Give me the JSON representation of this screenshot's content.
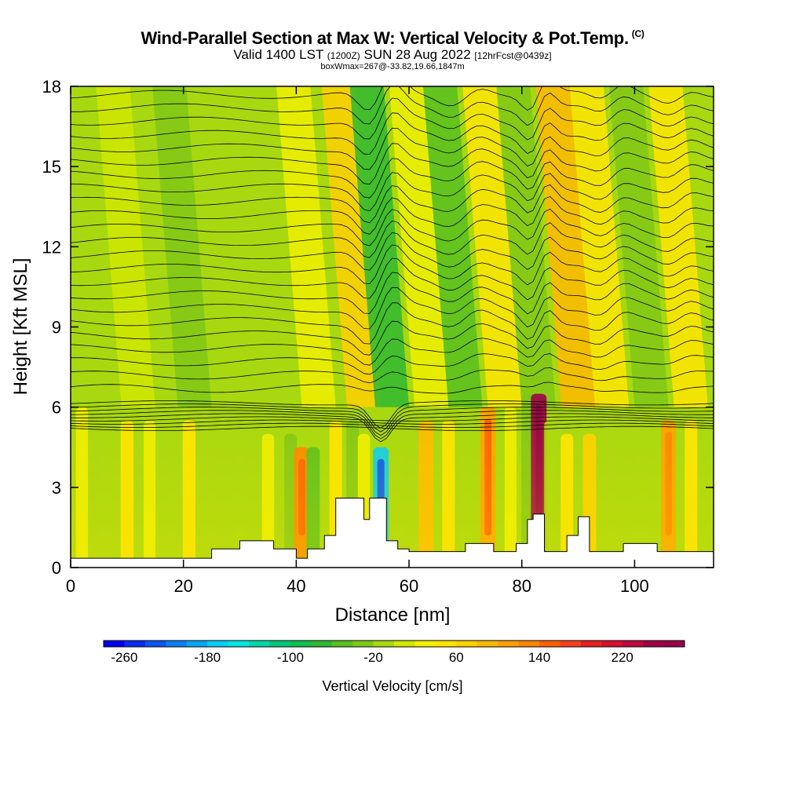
{
  "title": "Wind-Parallel Section at Max W: Vertical Velocity & Pot.Temp.",
  "title_mark": "(C)",
  "valid_line_a": "Valid 1400 LST",
  "valid_line_b": "(1200Z)",
  "valid_line_c": "SUN 28 Aug 2022",
  "valid_line_d": "[12hrFcst@0439z]",
  "box_line": "boxWmax=267@-33.82,19.66,1847m",
  "colorbar_title": "Vertical Velocity [cm/s]",
  "chart_data": {
    "type": "heatmap",
    "title": "Wind-Parallel Section at Max W: Vertical Velocity & Pot.Temp.",
    "xlabel": "Distance [nm]",
    "ylabel": "Height [Kft MSL]",
    "xlim": [
      0,
      114
    ],
    "ylim": [
      0,
      18
    ],
    "xticks": [
      "0",
      "20",
      "40",
      "60",
      "80",
      "100"
    ],
    "xtick_values": [
      0,
      20,
      40,
      60,
      80,
      100
    ],
    "yticks": [
      "0",
      "3",
      "6",
      "9",
      "12",
      "15",
      "18"
    ],
    "ytick_values": [
      0,
      3,
      6,
      9,
      12,
      15,
      18
    ],
    "colorbar": {
      "label": "Vertical Velocity [cm/s]",
      "min": -280,
      "max": 280,
      "step": 20,
      "tick_labels": [
        "-260",
        "-180",
        "-100",
        "-20",
        "60",
        "140",
        "220"
      ],
      "tick_values": [
        -260,
        -180,
        -100,
        -20,
        60,
        140,
        220
      ],
      "colors": [
        "#0000ee",
        "#0a2cf0",
        "#0b55f2",
        "#0a7ef4",
        "#07a6f6",
        "#00cef8",
        "#00e6e0",
        "#00d8a8",
        "#00c878",
        "#10c050",
        "#30b830",
        "#58c020",
        "#80c818",
        "#a8d810",
        "#d0e800",
        "#f0f000",
        "#ffe600",
        "#ffd000",
        "#ffba00",
        "#ffa000",
        "#ff8400",
        "#ff6000",
        "#f84020",
        "#e82020",
        "#d81030",
        "#c00840",
        "#a00048",
        "#980048"
      ]
    },
    "velocity_features": [
      {
        "x": 2,
        "z_top": 6,
        "w": 30
      },
      {
        "x": 6,
        "z_top": 6,
        "w": -10
      },
      {
        "x": 10,
        "z_top": 5.5,
        "w": 50
      },
      {
        "x": 14,
        "z_top": 5.5,
        "w": 20
      },
      {
        "x": 18,
        "z_top": 5.5,
        "w": -10
      },
      {
        "x": 21,
        "z_top": 5.5,
        "w": 45
      },
      {
        "x": 25,
        "z_top": 4.5,
        "w": -20
      },
      {
        "x": 30,
        "z_top": 5.0,
        "w": -10
      },
      {
        "x": 35,
        "z_top": 5.0,
        "w": 30
      },
      {
        "x": 39,
        "z_top": 5.0,
        "w": -40
      },
      {
        "x": 41,
        "z_top": 4.5,
        "w": 120
      },
      {
        "x": 43,
        "z_top": 4.5,
        "w": -60
      },
      {
        "x": 47,
        "z_top": 5.5,
        "w": 40
      },
      {
        "x": 50,
        "z_top": 5.5,
        "w": -40
      },
      {
        "x": 52,
        "z_top": 5.0,
        "w": 30
      },
      {
        "x": 55,
        "z_top": 4.5,
        "w": -180
      },
      {
        "x": 58,
        "z_top": 5.0,
        "w": -20
      },
      {
        "x": 63,
        "z_top": 5.5,
        "w": 90
      },
      {
        "x": 67,
        "z_top": 5.5,
        "w": 40
      },
      {
        "x": 70,
        "z_top": 5.5,
        "w": -20
      },
      {
        "x": 74,
        "z_top": 6.0,
        "w": 110
      },
      {
        "x": 78,
        "z_top": 6.0,
        "w": 20
      },
      {
        "x": 81,
        "z_top": 6.5,
        "w": -30
      },
      {
        "x": 83,
        "z_top": 6.5,
        "w": 240
      },
      {
        "x": 85,
        "z_top": 5.5,
        "w": -20
      },
      {
        "x": 88,
        "z_top": 5.0,
        "w": 40
      },
      {
        "x": 92,
        "z_top": 5.0,
        "w": 60
      },
      {
        "x": 96,
        "z_top": 4.5,
        "w": -10
      },
      {
        "x": 101,
        "z_top": 4.5,
        "w": -20
      },
      {
        "x": 106,
        "z_top": 5.5,
        "w": 100
      },
      {
        "x": 110,
        "z_top": 5.5,
        "w": 40
      }
    ],
    "terrain_kft": [
      [
        0,
        0.35
      ],
      [
        25,
        0.35
      ],
      [
        25,
        0.7
      ],
      [
        30,
        0.7
      ],
      [
        30,
        1.0
      ],
      [
        36,
        1.0
      ],
      [
        36,
        0.7
      ],
      [
        40,
        0.7
      ],
      [
        40,
        0.35
      ],
      [
        42,
        0.35
      ],
      [
        42,
        0.7
      ],
      [
        45,
        0.7
      ],
      [
        45,
        1.2
      ],
      [
        47,
        1.2
      ],
      [
        47,
        2.6
      ],
      [
        52,
        2.6
      ],
      [
        52,
        1.8
      ],
      [
        53,
        1.8
      ],
      [
        53,
        2.6
      ],
      [
        56,
        2.6
      ],
      [
        56,
        1.0
      ],
      [
        58,
        1.0
      ],
      [
        58,
        0.7
      ],
      [
        60,
        0.7
      ],
      [
        60,
        0.6
      ],
      [
        70,
        0.6
      ],
      [
        70,
        0.9
      ],
      [
        75,
        0.9
      ],
      [
        75,
        0.6
      ],
      [
        79,
        0.6
      ],
      [
        79,
        0.9
      ],
      [
        81,
        0.9
      ],
      [
        81,
        1.8
      ],
      [
        82,
        1.8
      ],
      [
        82,
        2.0
      ],
      [
        84,
        2.0
      ],
      [
        84,
        0.6
      ],
      [
        88,
        0.6
      ],
      [
        88,
        1.2
      ],
      [
        90,
        1.2
      ],
      [
        90,
        1.9
      ],
      [
        92,
        1.9
      ],
      [
        92,
        0.6
      ],
      [
        98,
        0.6
      ],
      [
        98,
        0.9
      ],
      [
        104,
        0.9
      ],
      [
        104,
        0.6
      ],
      [
        114,
        0.6
      ]
    ]
  }
}
